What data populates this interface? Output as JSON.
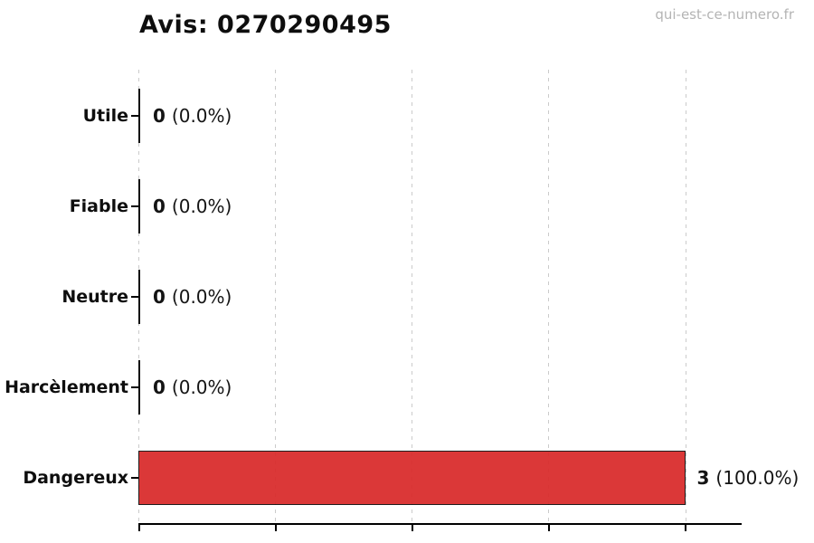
{
  "header": {
    "title": "Avis: 0270290495",
    "watermark": "qui-est-ce-numero.fr"
  },
  "colors": {
    "bar_fill": "#d92a2a",
    "bar_edge": "#0d0d0d",
    "gridline": "#cbcbcb",
    "axis": "#000000",
    "watermark": "#b4b4b4",
    "text": "#0e0e0e"
  },
  "chart_data": {
    "type": "bar",
    "orientation": "horizontal",
    "title": "Avis: 0270290495",
    "xlabel": "",
    "ylabel": "",
    "categories": [
      "Utile",
      "Fiable",
      "Neutre",
      "Harcèlement",
      "Dangereux"
    ],
    "values": [
      0,
      0,
      0,
      0,
      3
    ],
    "percentages": [
      0.0,
      0.0,
      0.0,
      0.0,
      100.0
    ],
    "value_labels": [
      "0 (0.0%)",
      "0 (0.0%)",
      "0 (0.0%)",
      "0 (0.0%)",
      "3 (100.0%)"
    ],
    "total": 3,
    "xlim_percent": [
      0,
      110
    ],
    "xticks_percent": [
      0,
      25,
      50,
      75,
      100
    ],
    "xtick_labels": [
      "",
      "",
      "",
      "",
      ""
    ],
    "grid": "vertical-dashed",
    "legend": "none",
    "bar_colors": [
      null,
      null,
      null,
      null,
      "#d92a2a"
    ]
  },
  "rows": [
    {
      "label": "Utile",
      "count": "0",
      "pct": "(0.0%)",
      "percent_value": 0,
      "color": null
    },
    {
      "label": "Fiable",
      "count": "0",
      "pct": "(0.0%)",
      "percent_value": 0,
      "color": null
    },
    {
      "label": "Neutre",
      "count": "0",
      "pct": "(0.0%)",
      "percent_value": 0,
      "color": null
    },
    {
      "label": "Harcèlement",
      "count": "0",
      "pct": "(0.0%)",
      "percent_value": 0,
      "color": null
    },
    {
      "label": "Dangereux",
      "count": "3",
      "pct": "(100.0%)",
      "percent_value": 100,
      "color": "#d92a2a"
    }
  ]
}
